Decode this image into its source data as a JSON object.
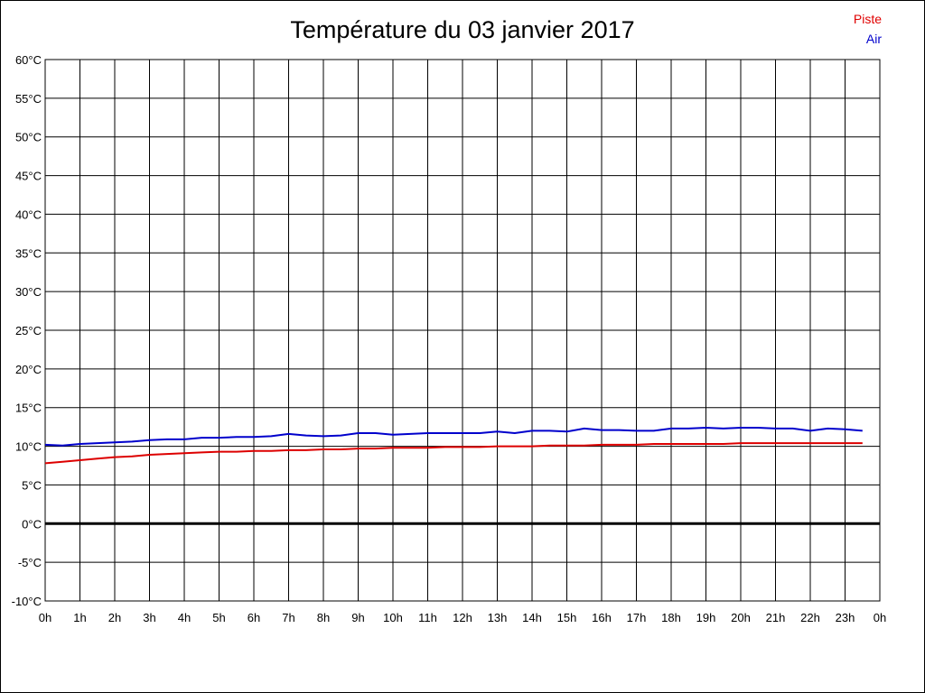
{
  "chart_data": {
    "type": "line",
    "title": "Température du 03 janvier 2017",
    "xlabel": "",
    "ylabel": "",
    "xlim": [
      0,
      24
    ],
    "ylim": [
      -10,
      60
    ],
    "y_ticks": [
      -10,
      -5,
      0,
      5,
      10,
      15,
      20,
      25,
      30,
      35,
      40,
      45,
      50,
      55,
      60
    ],
    "y_tick_labels": [
      "-10°C",
      "-5°C",
      "0°C",
      "5°C",
      "10°C",
      "15°C",
      "20°C",
      "25°C",
      "30°C",
      "35°C",
      "40°C",
      "45°C",
      "50°C",
      "55°C",
      "60°C"
    ],
    "x_ticks": [
      0,
      1,
      2,
      3,
      4,
      5,
      6,
      7,
      8,
      9,
      10,
      11,
      12,
      13,
      14,
      15,
      16,
      17,
      18,
      19,
      20,
      21,
      22,
      23,
      24
    ],
    "x_tick_labels": [
      "0h",
      "1h",
      "2h",
      "3h",
      "4h",
      "5h",
      "6h",
      "7h",
      "8h",
      "9h",
      "10h",
      "11h",
      "12h",
      "13h",
      "14h",
      "15h",
      "16h",
      "17h",
      "18h",
      "19h",
      "20h",
      "21h",
      "22h",
      "23h",
      "0h"
    ],
    "grid": true,
    "legend_position": "top-right",
    "zero_line": true,
    "series": [
      {
        "name": "Piste",
        "color": "#dd0000",
        "x": [
          0,
          0.5,
          1,
          1.5,
          2,
          2.5,
          3,
          3.5,
          4,
          4.5,
          5,
          5.5,
          6,
          6.5,
          7,
          7.5,
          8,
          8.5,
          9,
          9.5,
          10,
          10.5,
          11,
          11.5,
          12,
          12.5,
          13,
          13.5,
          14,
          14.5,
          15,
          15.5,
          16,
          16.5,
          17,
          17.5,
          18,
          18.5,
          19,
          19.5,
          20,
          20.5,
          21,
          21.5,
          22,
          22.5,
          23,
          23.5
        ],
        "values": [
          7.8,
          8.0,
          8.2,
          8.4,
          8.6,
          8.7,
          8.9,
          9.0,
          9.1,
          9.2,
          9.3,
          9.3,
          9.4,
          9.4,
          9.5,
          9.5,
          9.6,
          9.6,
          9.7,
          9.7,
          9.8,
          9.8,
          9.8,
          9.9,
          9.9,
          9.9,
          10.0,
          10.0,
          10.0,
          10.1,
          10.1,
          10.1,
          10.2,
          10.2,
          10.2,
          10.3,
          10.3,
          10.3,
          10.3,
          10.3,
          10.4,
          10.4,
          10.4,
          10.4,
          10.4,
          10.4,
          10.4,
          10.4
        ]
      },
      {
        "name": "Air",
        "color": "#0000cc",
        "x": [
          0,
          0.5,
          1,
          1.5,
          2,
          2.5,
          3,
          3.5,
          4,
          4.5,
          5,
          5.5,
          6,
          6.5,
          7,
          7.5,
          8,
          8.5,
          9,
          9.5,
          10,
          10.5,
          11,
          11.5,
          12,
          12.5,
          13,
          13.5,
          14,
          14.5,
          15,
          15.5,
          16,
          16.5,
          17,
          17.5,
          18,
          18.5,
          19,
          19.5,
          20,
          20.5,
          21,
          21.5,
          22,
          22.5,
          23,
          23.5
        ],
        "values": [
          10.2,
          10.1,
          10.3,
          10.4,
          10.5,
          10.6,
          10.8,
          10.9,
          10.9,
          11.1,
          11.1,
          11.2,
          11.2,
          11.3,
          11.6,
          11.4,
          11.3,
          11.4,
          11.7,
          11.7,
          11.5,
          11.6,
          11.7,
          11.7,
          11.7,
          11.7,
          11.9,
          11.7,
          12.0,
          12.0,
          11.9,
          12.3,
          12.1,
          12.1,
          12.0,
          12.0,
          12.3,
          12.3,
          12.4,
          12.3,
          12.4,
          12.4,
          12.3,
          12.3,
          12.0,
          12.3,
          12.2,
          12.0
        ]
      }
    ]
  }
}
